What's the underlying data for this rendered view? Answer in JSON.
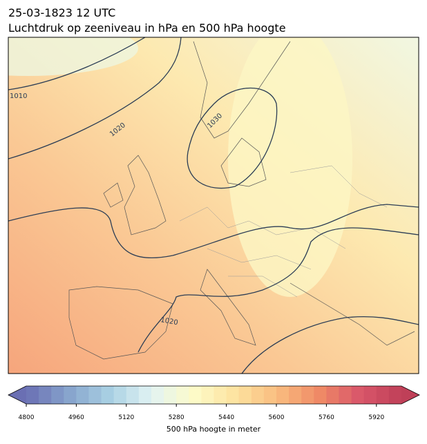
{
  "header": {
    "title": "25-03-1823 12 UTC",
    "subtitle": "Luchtdruk op zeeniveau in hPa en 500 hPa hoogte"
  },
  "map": {
    "contour_labels": [
      "1010",
      "1020",
      "1030",
      "1020"
    ]
  },
  "colorbar": {
    "label": "500 hPa hoogte in meter",
    "lim": [
      4800,
      6000
    ],
    "step": 40,
    "ticks": [
      4800,
      4960,
      5120,
      5280,
      5440,
      5600,
      5760,
      5920
    ],
    "colors": [
      "#6a6fb3",
      "#86a3cc",
      "#a9d0e3",
      "#e2f3f3",
      "#fdfbc9",
      "#fde3a0",
      "#f9bd80",
      "#f08c66",
      "#d9566a",
      "#bf4058"
    ]
  }
}
